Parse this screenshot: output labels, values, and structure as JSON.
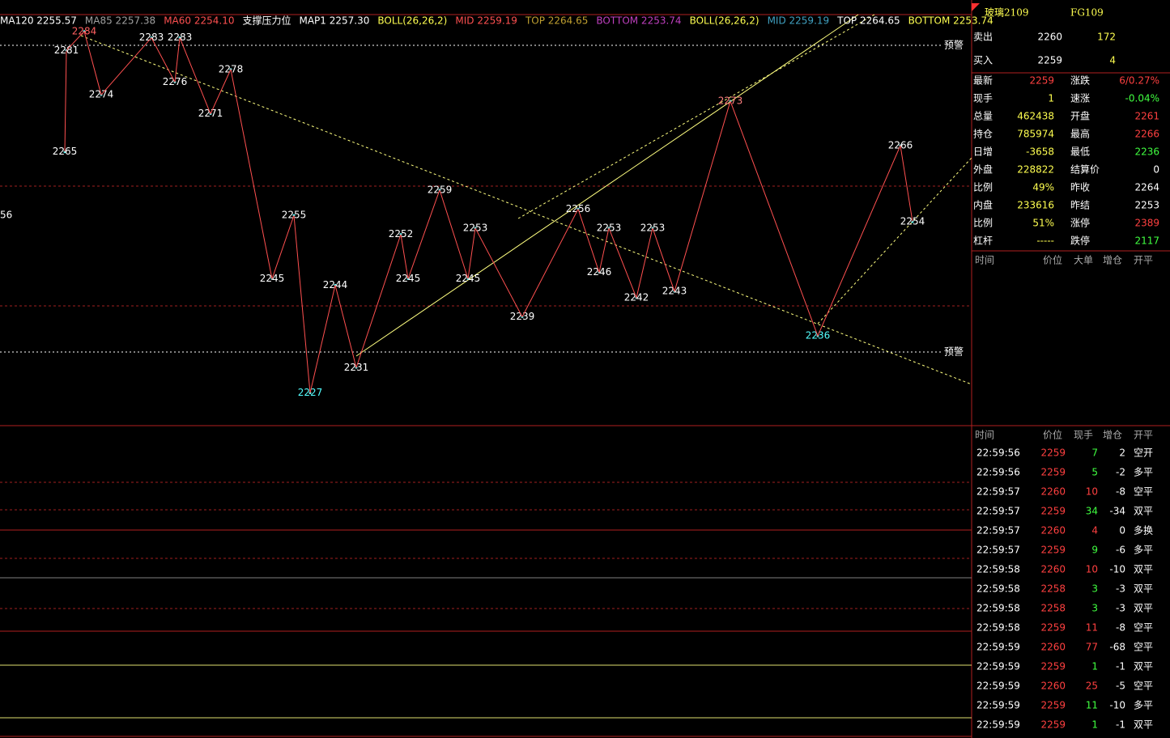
{
  "indicators": [
    {
      "text": "MA120 2255.57",
      "color": "#ffffff"
    },
    {
      "text": "MA85 2257.38",
      "color": "#a0a0a0"
    },
    {
      "text": "MA60 2254.10",
      "color": "#ff5050"
    },
    {
      "text": "支撑压力位",
      "color": "#ffffff"
    },
    {
      "text": "MAP1 2257.30",
      "color": "#ffffff"
    },
    {
      "text": "BOLL(26,26,2)",
      "color": "#ffff50"
    },
    {
      "text": "MID 2259.19",
      "color": "#ff5050"
    },
    {
      "text": "TOP 2264.65",
      "color": "#c0a030"
    },
    {
      "text": "BOTTOM 2253.74",
      "color": "#c040c0"
    },
    {
      "text": "BOLL(26,26,2)",
      "color": "#ffff50"
    },
    {
      "text": "MID 2259.19",
      "color": "#40a0c0"
    },
    {
      "text": "TOP 2264.65",
      "color": "#ffffff"
    },
    {
      "text": "BOTTOM 2253.74",
      "color": "#ffff50"
    }
  ],
  "edge_label": "56",
  "warning_labels": [
    "预警",
    "预警"
  ],
  "annotations": [
    {
      "value": 2265
    },
    {
      "value": 2281
    },
    {
      "value": 2284,
      "color": "#ff6060"
    },
    {
      "value": 2274
    },
    {
      "value": 2283
    },
    {
      "value": 2276
    },
    {
      "value": 2283
    },
    {
      "value": 2271
    },
    {
      "value": 2278
    },
    {
      "value": 2245
    },
    {
      "value": 2255
    },
    {
      "value": 2227,
      "color": "#54ffff"
    },
    {
      "value": 2244
    },
    {
      "value": 2231
    },
    {
      "value": 2252
    },
    {
      "value": 2245
    },
    {
      "value": 2259
    },
    {
      "value": 2245
    },
    {
      "value": 2253
    },
    {
      "value": 2239
    },
    {
      "value": 2256
    },
    {
      "value": 2246
    },
    {
      "value": 2253
    },
    {
      "value": 2242
    },
    {
      "value": 2253
    },
    {
      "value": 2243
    },
    {
      "value": 2273,
      "color": "#ff8080"
    },
    {
      "value": 2236,
      "color": "#54ffff"
    },
    {
      "value": 2266
    },
    {
      "value": 2254
    }
  ],
  "quote": {
    "name": "玻璃2109",
    "code": "FG109",
    "sell": {
      "label": "卖出",
      "price": 2260,
      "volume": 172
    },
    "buy": {
      "label": "买入",
      "price": 2259,
      "volume": 4
    },
    "stats": [
      [
        {
          "text": "最新"
        },
        {
          "text": 2259,
          "color": "#ff4040"
        },
        {
          "text": "涨跌"
        },
        {
          "text": "6/0.27%",
          "color": "#ff4040"
        }
      ],
      [
        {
          "text": "现手"
        },
        {
          "text": 1,
          "color": "#ffff50"
        },
        {
          "text": "速涨"
        },
        {
          "text": "-0.04%",
          "color": "#40ff40"
        }
      ],
      [
        {
          "text": "总量"
        },
        {
          "text": 462438,
          "color": "#ffff50"
        },
        {
          "text": "开盘"
        },
        {
          "text": 2261,
          "color": "#ff4040"
        }
      ],
      [
        {
          "text": "持仓"
        },
        {
          "text": 785974,
          "color": "#ffff50"
        },
        {
          "text": "最高"
        },
        {
          "text": 2266,
          "color": "#ff4040"
        }
      ],
      [
        {
          "text": "日增"
        },
        {
          "text": -3658,
          "color": "#ffff50"
        },
        {
          "text": "最低"
        },
        {
          "text": 2236,
          "color": "#40ff40"
        }
      ],
      [
        {
          "text": "外盘"
        },
        {
          "text": 228822,
          "color": "#ffff50"
        },
        {
          "text": "结算价"
        },
        {
          "text": 0,
          "color": "#ffffff"
        }
      ],
      [
        {
          "text": "比例"
        },
        {
          "text": "49%",
          "color": "#ffff50"
        },
        {
          "text": "昨收"
        },
        {
          "text": 2264,
          "color": "#ffffff"
        }
      ],
      [
        {
          "text": "内盘"
        },
        {
          "text": 233616,
          "color": "#ffff50"
        },
        {
          "text": "昨结"
        },
        {
          "text": 2253,
          "color": "#ffffff"
        }
      ],
      [
        {
          "text": "比例"
        },
        {
          "text": "51%",
          "color": "#ffff50"
        },
        {
          "text": "涨停"
        },
        {
          "text": 2389,
          "color": "#ff4040"
        }
      ],
      [
        {
          "text": "杠杆"
        },
        {
          "text": "-----",
          "color": "#ffff50"
        },
        {
          "text": "跌停"
        },
        {
          "text": 2117,
          "color": "#40ff40"
        }
      ]
    ]
  },
  "big_orders": {
    "header": [
      "时间",
      "价位",
      "大单",
      "增仓",
      "开平"
    ]
  },
  "trades": {
    "header": [
      "时间",
      "价位",
      "现手",
      "增仓",
      "开平"
    ],
    "rows": [
      [
        "22:59:56",
        2259,
        7,
        2,
        "空开",
        "g"
      ],
      [
        "22:59:56",
        2259,
        5,
        -2,
        "多平",
        "g"
      ],
      [
        "22:59:57",
        2260,
        10,
        -8,
        "空平",
        "r"
      ],
      [
        "22:59:57",
        2259,
        34,
        -34,
        "双平",
        "g"
      ],
      [
        "22:59:57",
        2260,
        4,
        0,
        "多换",
        "r"
      ],
      [
        "22:59:57",
        2259,
        9,
        -6,
        "多平",
        "g"
      ],
      [
        "22:59:58",
        2260,
        10,
        -10,
        "双平",
        "r"
      ],
      [
        "22:59:58",
        2258,
        3,
        -3,
        "双平",
        "g"
      ],
      [
        "22:59:58",
        2258,
        3,
        -3,
        "双平",
        "g"
      ],
      [
        "22:59:58",
        2259,
        11,
        -8,
        "空平",
        "r"
      ],
      [
        "22:59:59",
        2260,
        77,
        -68,
        "空平",
        "r"
      ],
      [
        "22:59:59",
        2259,
        1,
        -1,
        "双平",
        "g"
      ],
      [
        "22:59:59",
        2260,
        25,
        -5,
        "空平",
        "r"
      ],
      [
        "22:59:59",
        2259,
        11,
        -10,
        "多平",
        "g"
      ],
      [
        "22:59:59",
        2259,
        1,
        -1,
        "双平",
        "g"
      ]
    ]
  }
}
